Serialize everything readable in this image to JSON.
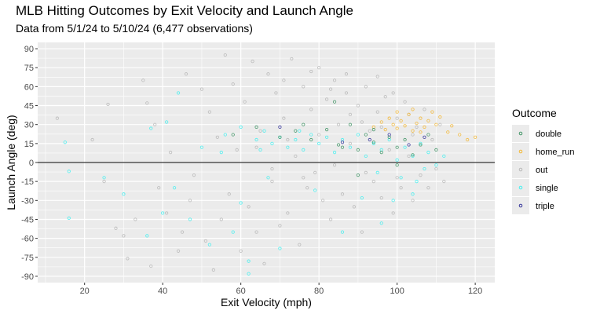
{
  "chart_data": {
    "type": "scatter",
    "title": "MLB Hitting Outcomes by Exit Velocity and Launch Angle",
    "subtitle": "Data from 5/1/24 to 5/10/24 (6,477 observations)",
    "xlabel": "Exit Velocity (mph)",
    "ylabel": "Launch Angle (deg)",
    "xlim": [
      8,
      125
    ],
    "ylim": [
      -95,
      95
    ],
    "x_ticks": [
      20,
      40,
      60,
      80,
      100,
      120
    ],
    "y_ticks": [
      -90,
      -75,
      -60,
      -45,
      -30,
      -15,
      0,
      15,
      30,
      45,
      60,
      75,
      90
    ],
    "grid": true,
    "reference_line_y": 0,
    "legend": {
      "title": "Outcome",
      "position": "right",
      "entries": [
        "double",
        "home_run",
        "out",
        "single",
        "triple"
      ]
    },
    "colors": {
      "double": "#2e8b57",
      "home_run": "#f5b323",
      "out": "#b3b3b3",
      "single": "#33f0f0",
      "triple": "#1f1f8f",
      "panel": "#ebebeb",
      "grid": "#ffffff"
    },
    "series": [
      {
        "name": "out",
        "points": [
          [
            13,
            35
          ],
          [
            22,
            18
          ],
          [
            25,
            -15
          ],
          [
            26,
            46
          ],
          [
            28,
            -52
          ],
          [
            30,
            -58
          ],
          [
            31,
            -76
          ],
          [
            33,
            -45
          ],
          [
            35,
            65
          ],
          [
            36,
            47
          ],
          [
            37,
            -82
          ],
          [
            38,
            30
          ],
          [
            39,
            -20
          ],
          [
            41,
            -40
          ],
          [
            42,
            8
          ],
          [
            44,
            -70
          ],
          [
            45,
            -55
          ],
          [
            46,
            70
          ],
          [
            47,
            -30
          ],
          [
            48,
            -10
          ],
          [
            50,
            58
          ],
          [
            51,
            -62
          ],
          [
            52,
            40
          ],
          [
            53,
            -85
          ],
          [
            54,
            20
          ],
          [
            55,
            -45
          ],
          [
            56,
            85
          ],
          [
            57,
            -25
          ],
          [
            58,
            62
          ],
          [
            59,
            10
          ],
          [
            60,
            -70
          ],
          [
            61,
            48
          ],
          [
            62,
            -35
          ],
          [
            63,
            80
          ],
          [
            64,
            -55
          ],
          [
            65,
            25
          ],
          [
            66,
            -80
          ],
          [
            67,
            70
          ],
          [
            68,
            -15
          ],
          [
            69,
            55
          ],
          [
            70,
            -50
          ],
          [
            71,
            35
          ],
          [
            72,
            -40
          ],
          [
            73,
            82
          ],
          [
            74,
            5
          ],
          [
            75,
            -65
          ],
          [
            76,
            60
          ],
          [
            77,
            -20
          ],
          [
            78,
            42
          ],
          [
            79,
            -8
          ],
          [
            80,
            75
          ],
          [
            81,
            -30
          ],
          [
            82,
            50
          ],
          [
            83,
            -45
          ],
          [
            84,
            65
          ],
          [
            85,
            30
          ],
          [
            86,
            -25
          ],
          [
            87,
            55
          ],
          [
            88,
            15
          ],
          [
            89,
            -35
          ],
          [
            90,
            45
          ],
          [
            91,
            -55
          ],
          [
            92,
            60
          ],
          [
            93,
            25
          ],
          [
            94,
            -15
          ],
          [
            95,
            40
          ],
          [
            96,
            -28
          ],
          [
            97,
            52
          ],
          [
            98,
            10
          ],
          [
            99,
            -40
          ],
          [
            100,
            35
          ],
          [
            101,
            -20
          ],
          [
            102,
            48
          ],
          [
            103,
            5
          ],
          [
            104,
            -30
          ],
          [
            105,
            28
          ],
          [
            106,
            -10
          ],
          [
            107,
            42
          ],
          [
            108,
            -20
          ],
          [
            109,
            18
          ],
          [
            110,
            -5
          ],
          [
            111,
            30
          ],
          [
            112,
            -15
          ],
          [
            64,
            12
          ],
          [
            68,
            -5
          ],
          [
            72,
            18
          ],
          [
            76,
            -12
          ],
          [
            80,
            22
          ],
          [
            84,
            -2
          ],
          [
            88,
            38
          ],
          [
            92,
            -8
          ],
          [
            96,
            28
          ],
          [
            100,
            -12
          ],
          [
            104,
            22
          ],
          [
            71,
            65
          ],
          [
            78,
            72
          ],
          [
            83,
            58
          ],
          [
            87,
            70
          ],
          [
            91,
            32
          ],
          [
            95,
            68
          ],
          [
            99,
            55
          ],
          [
            103,
            38
          ]
        ]
      },
      {
        "name": "single",
        "points": [
          [
            15,
            16
          ],
          [
            16,
            -7
          ],
          [
            16,
            -44
          ],
          [
            25,
            -12
          ],
          [
            30,
            -25
          ],
          [
            36,
            -58
          ],
          [
            37,
            27
          ],
          [
            40,
            -40
          ],
          [
            41,
            32
          ],
          [
            43,
            -20
          ],
          [
            44,
            55
          ],
          [
            47,
            -45
          ],
          [
            50,
            12
          ],
          [
            52,
            -65
          ],
          [
            55,
            8
          ],
          [
            56,
            22
          ],
          [
            58,
            -55
          ],
          [
            60,
            28
          ],
          [
            62,
            -78
          ],
          [
            64,
            18
          ],
          [
            65,
            10
          ],
          [
            66,
            25
          ],
          [
            68,
            15
          ],
          [
            70,
            20
          ],
          [
            72,
            12
          ],
          [
            74,
            18
          ],
          [
            75,
            25
          ],
          [
            76,
            10
          ],
          [
            78,
            22
          ],
          [
            80,
            15
          ],
          [
            82,
            20
          ],
          [
            84,
            8
          ],
          [
            86,
            18
          ],
          [
            88,
            12
          ],
          [
            90,
            22
          ],
          [
            92,
            5
          ],
          [
            94,
            15
          ],
          [
            95,
            -8
          ],
          [
            96,
            10
          ],
          [
            98,
            18
          ],
          [
            100,
            2
          ],
          [
            101,
            -12
          ],
          [
            102,
            12
          ],
          [
            104,
            5
          ],
          [
            105,
            -15
          ],
          [
            106,
            15
          ],
          [
            107,
            -5
          ],
          [
            108,
            8
          ],
          [
            110,
            -2
          ],
          [
            112,
            5
          ],
          [
            86,
            -55
          ],
          [
            96,
            -48
          ],
          [
            60,
            -32
          ],
          [
            70,
            -68
          ],
          [
            67,
            -12
          ],
          [
            79,
            -22
          ],
          [
            91,
            -28
          ],
          [
            99,
            -30
          ],
          [
            104,
            -25
          ],
          [
            62,
            -88
          ]
        ]
      },
      {
        "name": "home_run",
        "points": [
          [
            94,
            28
          ],
          [
            96,
            32
          ],
          [
            97,
            26
          ],
          [
            98,
            35
          ],
          [
            99,
            30
          ],
          [
            100,
            27
          ],
          [
            101,
            33
          ],
          [
            102,
            29
          ],
          [
            103,
            38
          ],
          [
            104,
            25
          ],
          [
            105,
            31
          ],
          [
            106,
            35
          ],
          [
            107,
            28
          ],
          [
            108,
            33
          ],
          [
            109,
            40
          ],
          [
            110,
            30
          ],
          [
            111,
            36
          ],
          [
            113,
            24
          ],
          [
            114,
            29
          ],
          [
            116,
            22
          ],
          [
            118,
            18
          ],
          [
            120,
            20
          ],
          [
            100,
            40
          ],
          [
            104,
            42
          ],
          [
            106,
            24
          ]
        ]
      },
      {
        "name": "double",
        "points": [
          [
            58,
            22
          ],
          [
            64,
            28
          ],
          [
            70,
            20
          ],
          [
            74,
            25
          ],
          [
            78,
            18
          ],
          [
            82,
            26
          ],
          [
            85,
            14
          ],
          [
            88,
            30
          ],
          [
            90,
            10
          ],
          [
            92,
            22
          ],
          [
            94,
            16
          ],
          [
            96,
            8
          ],
          [
            98,
            20
          ],
          [
            100,
            12
          ],
          [
            102,
            18
          ],
          [
            104,
            6
          ],
          [
            106,
            14
          ],
          [
            108,
            22
          ],
          [
            110,
            10
          ],
          [
            76,
            30
          ],
          [
            86,
            12
          ],
          [
            94,
            26
          ],
          [
            100,
            -2
          ],
          [
            84,
            48
          ],
          [
            90,
            -10
          ]
        ]
      },
      {
        "name": "triple",
        "points": [
          [
            70,
            28
          ],
          [
            86,
            16
          ],
          [
            93,
            18
          ],
          [
            98,
            22
          ],
          [
            103,
            14
          ],
          [
            107,
            20
          ]
        ]
      }
    ]
  }
}
